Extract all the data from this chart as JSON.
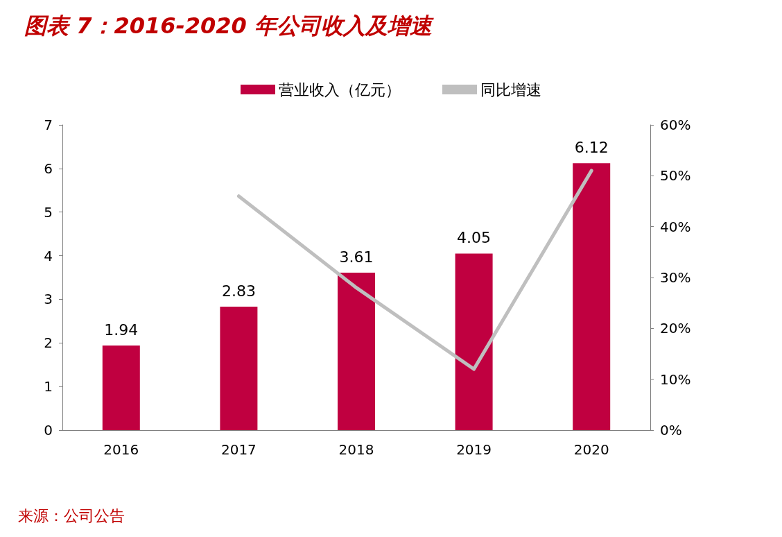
{
  "chart_data": {
    "type": "bar",
    "title": "图表 7：2016-2020 年公司收入及增速",
    "categories": [
      "2016",
      "2017",
      "2018",
      "2019",
      "2020"
    ],
    "series": [
      {
        "name": "营业收入（亿元）",
        "color": "#c00040",
        "values": [
          1.94,
          2.83,
          3.61,
          4.05,
          6.12
        ],
        "value_labels": [
          "1.94",
          "2.83",
          "3.61",
          "4.05",
          "6.12"
        ]
      },
      {
        "name": "同比增速",
        "type": "line",
        "axis": "y2",
        "color": "#bfbfbf",
        "values": [
          null,
          46,
          28,
          12,
          51
        ]
      }
    ],
    "ylim": [
      0,
      7
    ],
    "yticks": [
      0,
      1,
      2,
      3,
      4,
      5,
      6,
      7
    ],
    "y2lim": [
      0,
      60
    ],
    "y2ticks": [
      {
        "value": 0,
        "label": "0%"
      },
      {
        "value": 10,
        "label": "10%"
      },
      {
        "value": 20,
        "label": "20%"
      },
      {
        "value": 30,
        "label": "30%"
      },
      {
        "value": 40,
        "label": "40%"
      },
      {
        "value": 50,
        "label": "50%"
      },
      {
        "value": 60,
        "label": "60%"
      }
    ],
    "grid": false,
    "legend": "top",
    "marker": "none",
    "line_style": "solid",
    "annotations": [
      "来源：公司公告"
    ]
  }
}
